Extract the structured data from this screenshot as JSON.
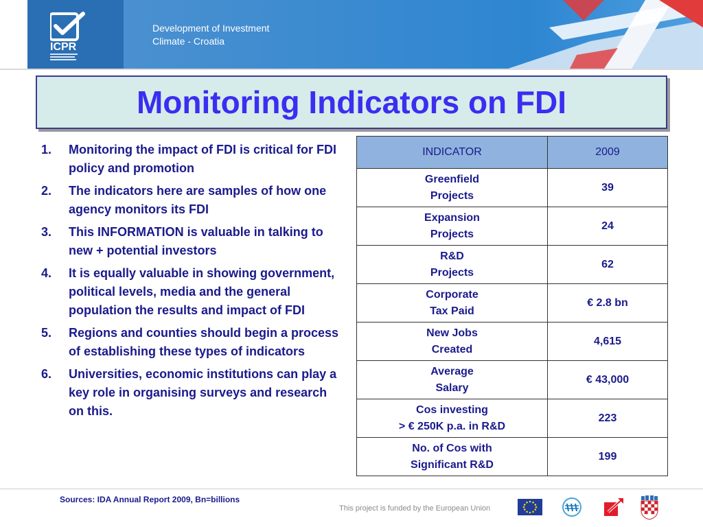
{
  "header": {
    "logo_text": "ICPR",
    "title_line1": "Development of Investment",
    "title_line2": "Climate - Croatia",
    "colors": {
      "logo_blue": "#2a6fb3",
      "band_blue": "#2e86d1",
      "red": "#e23b3b"
    }
  },
  "slide": {
    "title": "Monitoring Indicators on FDI",
    "points": [
      {
        "num": "1.",
        "text": "Monitoring the impact of FDI is critical for FDI policy and promotion"
      },
      {
        "num": "2.",
        "text": "The indicators here are samples of how one agency monitors its FDI"
      },
      {
        "num": "3.",
        "text": "This INFORMATION is valuable in talking to new + potential investors"
      },
      {
        "num": "4.",
        "text": "It is equally valuable in showing government, political levels, media and the general population the results and impact of FDI"
      },
      {
        "num": "5.",
        "text": "Regions and counties should begin a process of establishing these types of indicators"
      },
      {
        "num": "6.",
        "text": "Universities, economic institutions can play a key role in organising surveys and research on this."
      }
    ]
  },
  "table": {
    "headers": [
      "INDICATOR",
      "2009"
    ],
    "rows": [
      {
        "line1": "Greenfield",
        "line2": "Projects",
        "value": "39"
      },
      {
        "line1": "Expansion",
        "line2": "Projects",
        "value": "24"
      },
      {
        "line1": "R&D",
        "line2": "Projects",
        "value": "62"
      },
      {
        "line1": "Corporate",
        "line2": "Tax Paid",
        "value": "€ 2.8 bn"
      },
      {
        "line1": "New Jobs",
        "line2": "Created",
        "value": "4,615"
      },
      {
        "line1": "Average",
        "line2": "Salary",
        "value": "€ 43,000"
      },
      {
        "line1": "Cos investing",
        "line2": "> € 250K p.a. in R&D",
        "value": "223"
      },
      {
        "line1": "No. of Cos with",
        "line2": "Significant R&D",
        "value": "199"
      }
    ]
  },
  "footer": {
    "source": "Sources: IDA Annual Report 2009, Bn=billions",
    "funded": "This project is funded by the European Union",
    "icons": [
      "eu-flag-icon",
      "idi-logo-icon",
      "arrow-logo-icon",
      "croatia-crest-icon"
    ]
  }
}
